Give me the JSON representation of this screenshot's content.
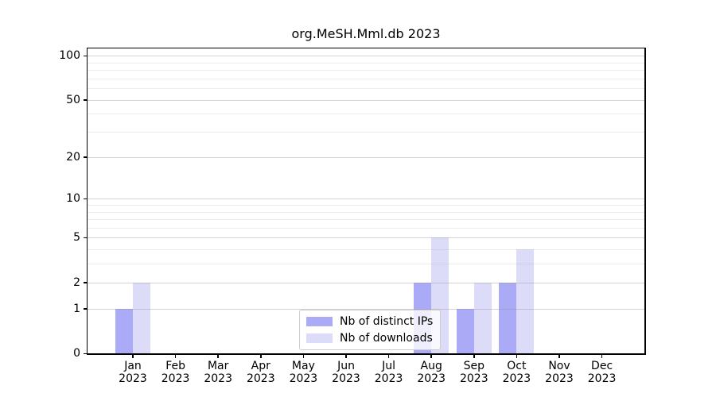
{
  "title": "org.MeSH.Mml.db 2023",
  "legend": {
    "items": [
      {
        "label": "Nb of distinct IPs",
        "color": "#aaaaf6"
      },
      {
        "label": "Nb of downloads",
        "color": "#dcdcf8"
      }
    ]
  },
  "colors": {
    "bar_distinct_ips": "#aaaaf6",
    "bar_downloads": "#dcdcf8",
    "axis": "#000000",
    "grid_major": "rgba(150,150,150,0.42)",
    "grid_minor": "rgba(150,150,150,0.18)"
  },
  "chart_data": {
    "type": "bar",
    "title": "org.MeSH.Mml.db 2023",
    "categories": [
      "Jan 2023",
      "Feb 2023",
      "Mar 2023",
      "Apr 2023",
      "May 2023",
      "Jun 2023",
      "Jul 2023",
      "Aug 2023",
      "Sep 2023",
      "Oct 2023",
      "Nov 2023",
      "Dec 2023"
    ],
    "series": [
      {
        "name": "Nb of distinct IPs",
        "values": [
          1,
          0,
          0,
          0,
          0,
          0,
          0,
          2,
          1,
          2,
          0,
          0
        ]
      },
      {
        "name": "Nb of downloads",
        "values": [
          2,
          0,
          0,
          0,
          0,
          0,
          0,
          5,
          2,
          4,
          0,
          0
        ]
      }
    ],
    "xlabel": "",
    "ylabel": "",
    "y_scale": "log10(1+x)",
    "y_axis_ticks": [
      0,
      1,
      2,
      5,
      10,
      20,
      50,
      100
    ],
    "y_minor_gridlines": [
      3,
      4,
      6,
      7,
      8,
      9,
      30,
      40,
      60,
      70,
      80,
      90
    ],
    "ylim": [
      0,
      110
    ],
    "grid": "horizontal both major+minor, drawn over bars",
    "legend_position": "lower center"
  }
}
